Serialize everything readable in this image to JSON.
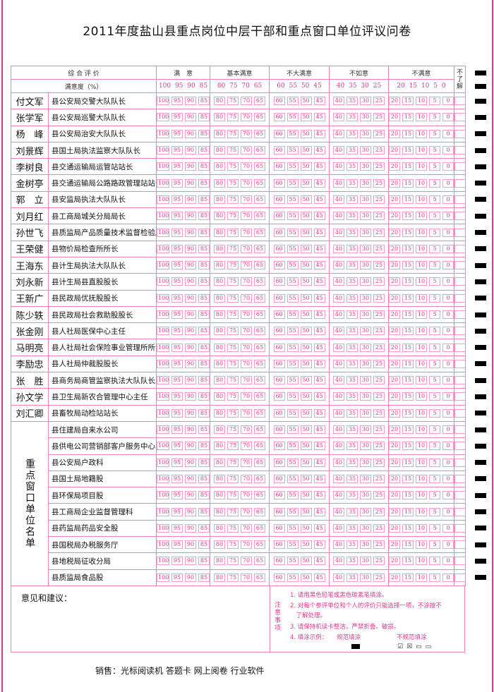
{
  "title": "2011年度盐山县重点岗位中层干部和重点窗口单位评议问卷",
  "header": {
    "overall": "综 合 评 价",
    "degree": "满意度（%）",
    "categories": [
      {
        "label": "满　意",
        "scores": [
          "100",
          "95",
          "90",
          "85"
        ]
      },
      {
        "label": "基本满意",
        "scores": [
          "80",
          "75",
          "70",
          "65"
        ]
      },
      {
        "label": "不大满意",
        "scores": [
          "60",
          "55",
          "50",
          "45"
        ]
      },
      {
        "label": "不如意",
        "scores": [
          "40",
          "35",
          "30",
          "25"
        ]
      },
      {
        "label": "不满意",
        "scores": [
          "20",
          "15",
          "10",
          "5",
          "0"
        ]
      }
    ],
    "unknown": "不了解"
  },
  "people": [
    {
      "name": "付文军",
      "position": "县公安局交警大队队长"
    },
    {
      "name": "张学军",
      "position": "县公安局巡警大队队长"
    },
    {
      "name": "杨　峰",
      "position": "县公安局治安大队队长"
    },
    {
      "name": "刘景辉",
      "position": "县国土局执法监察大队队长"
    },
    {
      "name": "李树良",
      "position": "县交通运输局运管站站长"
    },
    {
      "name": "金树亭",
      "position": "县交通运输局公路路政管理站站长"
    },
    {
      "name": "郭　立",
      "position": "县安监局执法大队队长"
    },
    {
      "name": "刘月红",
      "position": "县工商局城关分局局长"
    },
    {
      "name": "孙世飞",
      "position": "县质监局产品质量技术监督检验所所长"
    },
    {
      "name": "王荣健",
      "position": "县物价局检查所所长"
    },
    {
      "name": "王海东",
      "position": "县计生局执法大队队长"
    },
    {
      "name": "刘永新",
      "position": "县计生局县直股股长"
    },
    {
      "name": "王新广",
      "position": "县民政局优抚股股长"
    },
    {
      "name": "陈少轶",
      "position": "县民政局社会救助股股长"
    },
    {
      "name": "张金刚",
      "position": "县人社局医保中心主任"
    },
    {
      "name": "马明亮",
      "position": "县人社局社会保险事业管理所所长"
    },
    {
      "name": "李励忠",
      "position": "县人社局仲裁股股长"
    },
    {
      "name": "张　胜",
      "position": "县商务局商管监察执法大队队长"
    },
    {
      "name": "孙文学",
      "position": "县卫生局新农合管理中心主任"
    },
    {
      "name": "刘汇卿",
      "position": "县畜牧局动检站站长"
    }
  ],
  "units_label": "重点窗口单位名单",
  "units": [
    "县住建局自来水公司",
    "县供电公司营销部客户服务中心",
    "县公安局户政科",
    "县国土局地籍股",
    "县环保局项目股",
    "县工商局企业监督管理科",
    "县药监局药品安全股",
    "县国税局办税服务厅",
    "县地税局征收分局",
    "县质监局食品股"
  ],
  "notes": {
    "suggestion_label": "意见和建议：",
    "label": "注意事项",
    "items": [
      "1. 请用黑色铅笔或黑色碳素笔填涂。",
      "2. 对每个参评单位和个人的评价只能选择一项，不涂按不",
      "　了解处理。",
      "3. 请保持机读卡整洁，严禁折叠、破损。",
      "4. 填涂示例：　　规范填涂　　　　　　不规范填涂"
    ]
  },
  "footer": "销售：光标阅读机  答题卡  网上阅卷  行业软件",
  "colors": {
    "accent": "#e0388f",
    "grid": "#f080c0"
  }
}
